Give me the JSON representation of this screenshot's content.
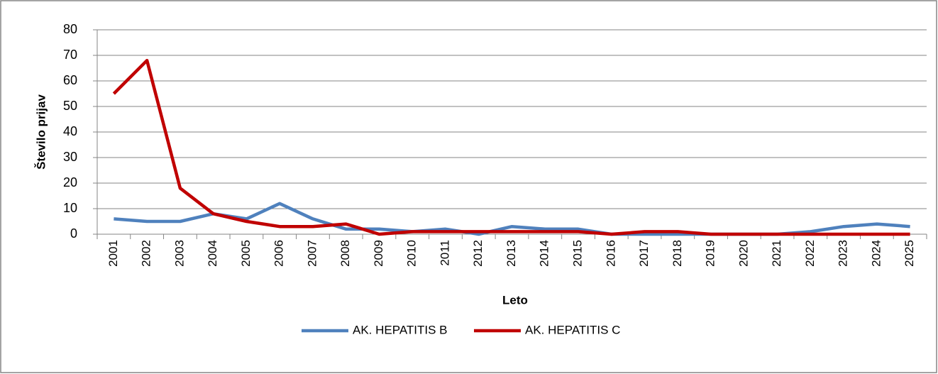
{
  "chart_data": {
    "type": "line",
    "x_label": "Leto",
    "y_label": "Število prijav",
    "categories": [
      "2001",
      "2002",
      "2003",
      "2004",
      "2005",
      "2006",
      "2007",
      "2008",
      "2009",
      "2010",
      "2011",
      "2012",
      "2013",
      "2014",
      "2015",
      "2016",
      "2017",
      "2018",
      "2019",
      "2020",
      "2021",
      "2022",
      "2023",
      "2024",
      "2025"
    ],
    "series": [
      {
        "name": "AK. HEPATITIS B",
        "color": "#4f81bd",
        "values": [
          6,
          5,
          5,
          8,
          6,
          12,
          6,
          2,
          2,
          1,
          2,
          0,
          3,
          2,
          2,
          0,
          0,
          0,
          0,
          0,
          0,
          1,
          3,
          4,
          3
        ]
      },
      {
        "name": "AK. HEPATITIS C",
        "color": "#c00000",
        "values": [
          55,
          68,
          18,
          8,
          5,
          3,
          3,
          4,
          0,
          1,
          1,
          1,
          1,
          1,
          1,
          0,
          1,
          1,
          0,
          0,
          0,
          0,
          0,
          0,
          0
        ]
      }
    ],
    "ylim": [
      0,
      80
    ],
    "yticks": [
      0,
      10,
      20,
      30,
      40,
      50,
      60,
      70,
      80
    ],
    "grid": true,
    "legend": "bottom"
  }
}
